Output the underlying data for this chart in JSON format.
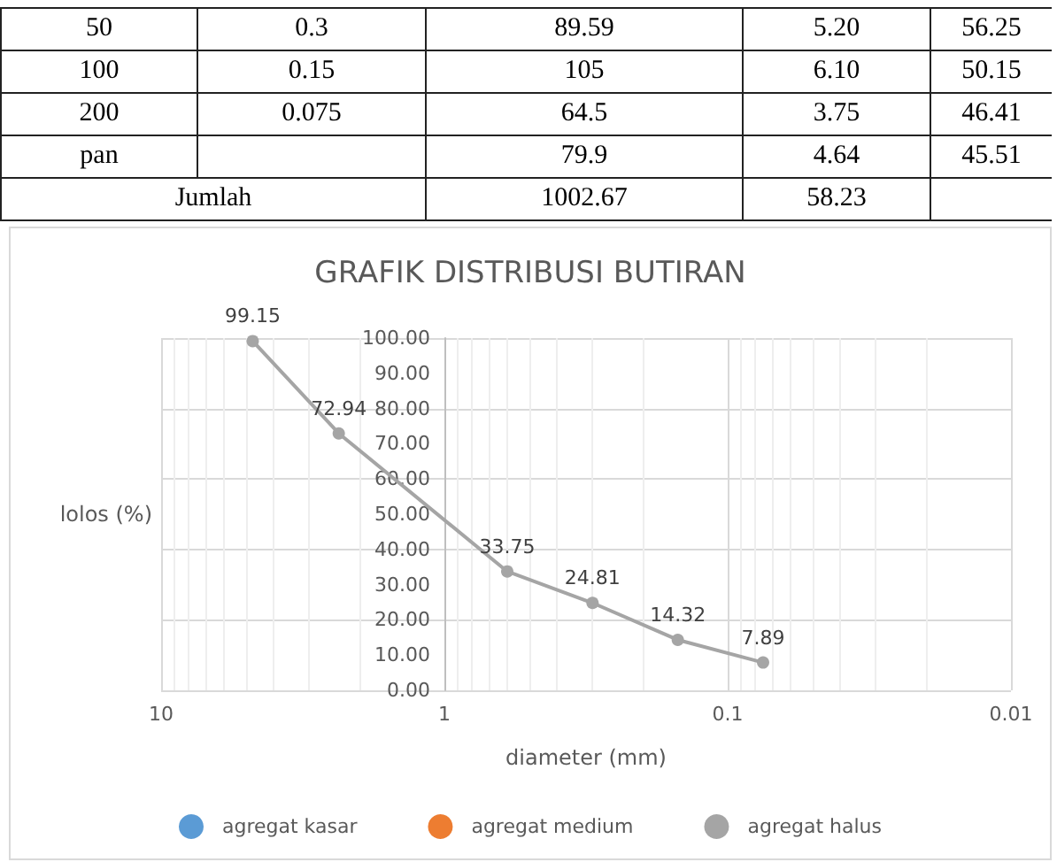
{
  "chart_data": [
    {
      "type": "other",
      "annotations": [
        "50",
        "0.3",
        "89.59",
        "5.20",
        "56.25",
        "100",
        "0.15",
        "105",
        "6.10",
        "50.15",
        "200",
        "0.075",
        "64.5",
        "3.75",
        "46.41",
        "pan",
        "79.9",
        "4.64",
        "45.51",
        "Jumlah",
        "1002.67",
        "58.23"
      ]
    },
    {
      "type": "line",
      "title": "GRAFIK DISTRIBUSI BUTIRAN",
      "xlabel": "diameter (mm)",
      "ylabel": "lolos (%)",
      "log": "x",
      "grid": true,
      "legend": "bottom",
      "marker": "circle",
      "data_labels": true,
      "xlim": [
        10,
        0.01
      ],
      "xticks": [
        10,
        1,
        0.1,
        0.01
      ],
      "ylim": [
        0,
        100
      ],
      "yticks": [
        {
          "value": 0,
          "label": "0.00"
        },
        {
          "value": 10,
          "label": "10.00"
        },
        {
          "value": 20,
          "label": "20.00"
        },
        {
          "value": 30,
          "label": "30.00"
        },
        {
          "value": 40,
          "label": "40.00"
        },
        {
          "value": 50,
          "label": "50.00"
        },
        {
          "value": 60,
          "label": "60.00"
        },
        {
          "value": 70,
          "label": "70.00"
        },
        {
          "value": 80,
          "label": "80.00"
        },
        {
          "value": 90,
          "label": "90.00"
        },
        {
          "value": 100,
          "label": "100.00"
        }
      ],
      "series": [
        {
          "name": "agregat kasar",
          "color": "#5b9bd5"
        },
        {
          "name": "agregat medium",
          "color": "#ed7d31"
        },
        {
          "name": "agregat halus",
          "color": "#a5a5a5",
          "x": [
            4.75,
            2.36,
            0.6,
            0.3,
            0.15,
            0.075
          ],
          "values": [
            99.15,
            72.94,
            33.75,
            24.81,
            14.32,
            7.89
          ]
        }
      ]
    }
  ]
}
